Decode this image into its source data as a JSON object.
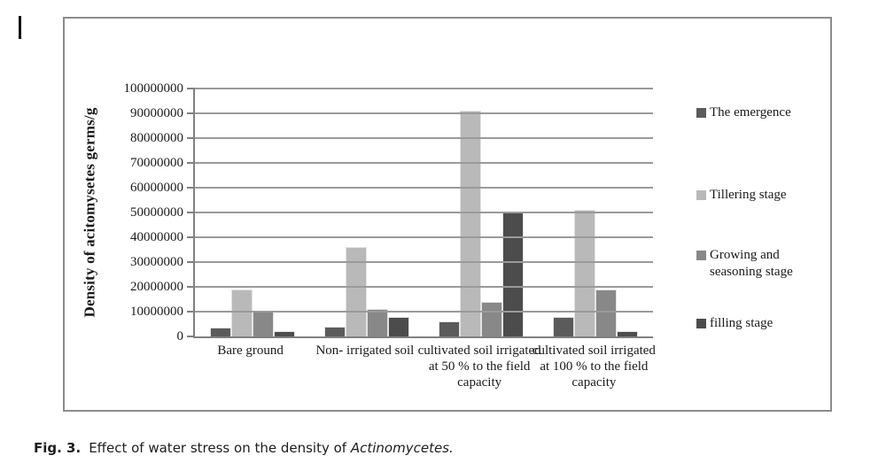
{
  "caption": {
    "fig_label": "Fig. 3.",
    "text": "Effect of water stress on the density of",
    "italic": "Actinomycetes."
  },
  "chart_data": {
    "type": "bar",
    "title": "",
    "xlabel": "",
    "ylabel": "Density of acitomysetes germs/g",
    "ylim": [
      0,
      100000000
    ],
    "ytick_step": 10000000,
    "grid": true,
    "legend_position": "right",
    "categories": [
      "Bare ground",
      "Non- irrigated soil",
      "cultivated soil irrigated at 50 % to the field capacity",
      "cultivated soil irrigated at 100 % to the field capacity"
    ],
    "series": [
      {
        "name": "The emergence",
        "color": "#5b5b5b",
        "values": [
          3500000,
          4000000,
          6000000,
          8000000
        ]
      },
      {
        "name": "Tillering stage",
        "color": "#b9b9b9",
        "values": [
          19000000,
          36000000,
          91000000,
          51000000
        ]
      },
      {
        "name": "Growing and seasoning stage",
        "color": "#888888",
        "values": [
          10500000,
          11000000,
          14000000,
          19000000
        ]
      },
      {
        "name": "filling stage",
        "color": "#4c4c4c",
        "values": [
          2000000,
          8000000,
          50000000,
          2000000
        ]
      }
    ],
    "colors": {
      "axis": "#808080",
      "gridline": "#9a9a9a",
      "figure_border": "#8c8c8c"
    }
  }
}
